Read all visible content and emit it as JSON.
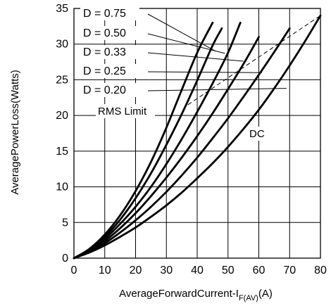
{
  "chart_data": {
    "type": "line",
    "title": "",
    "xlabel": "AverageForwardCurrent-I",
    "xlabel_subscript": "F(AV)",
    "xlabel_unit": "(A)",
    "ylabel": "AveragePowerLoss(Watts)",
    "xlim": [
      0,
      80
    ],
    "ylim": [
      0,
      35
    ],
    "x_ticks": [
      0,
      10,
      20,
      30,
      40,
      50,
      60,
      70,
      80
    ],
    "y_ticks": [
      0,
      5,
      10,
      15,
      20,
      25,
      30,
      35
    ],
    "grid": true,
    "series": [
      {
        "name": "D = 0.75",
        "x": [
          0,
          5,
          10,
          15,
          20,
          25,
          30,
          35,
          40,
          45
        ],
        "y": [
          0,
          1.3,
          3.3,
          6.0,
          9.4,
          13.5,
          18.3,
          23.6,
          28.8,
          33.0
        ]
      },
      {
        "name": "D = 0.50",
        "x": [
          0,
          5,
          10,
          15,
          20,
          25,
          30,
          35,
          40,
          45,
          48
        ],
        "y": [
          0,
          1.2,
          3.0,
          5.4,
          8.4,
          11.9,
          15.9,
          20.2,
          24.9,
          29.8,
          32.2
        ]
      },
      {
        "name": "D = 0.33",
        "x": [
          0,
          5,
          10,
          15,
          20,
          25,
          30,
          35,
          40,
          45,
          50,
          54
        ],
        "y": [
          0,
          1.1,
          2.7,
          4.8,
          7.2,
          10.0,
          13.2,
          16.7,
          20.5,
          24.5,
          28.8,
          33.0
        ]
      },
      {
        "name": "D = 0.25",
        "x": [
          0,
          5,
          10,
          15,
          20,
          25,
          30,
          35,
          40,
          45,
          50,
          55,
          60
        ],
        "y": [
          0,
          1.0,
          2.4,
          4.2,
          6.3,
          8.7,
          11.3,
          14.1,
          17.1,
          20.3,
          23.7,
          27.2,
          31.0
        ]
      },
      {
        "name": "D = 0.20",
        "x": [
          0,
          5,
          10,
          15,
          20,
          25,
          30,
          35,
          40,
          45,
          50,
          55,
          60,
          65,
          70
        ],
        "y": [
          0,
          0.9,
          2.1,
          3.6,
          5.3,
          7.2,
          9.3,
          11.6,
          14.1,
          16.8,
          19.6,
          22.6,
          25.7,
          28.9,
          32.2
        ]
      },
      {
        "name": "DC",
        "x": [
          0,
          5,
          10,
          15,
          20,
          25,
          30,
          35,
          40,
          45,
          50,
          55,
          60,
          65,
          70,
          75,
          80
        ],
        "y": [
          0,
          0.8,
          1.8,
          3.0,
          4.3,
          5.8,
          7.4,
          9.2,
          11.2,
          13.3,
          15.6,
          18.1,
          20.8,
          23.8,
          27.0,
          30.4,
          34.0
        ]
      }
    ],
    "rms_limit": {
      "name": "RMS Limit",
      "x": [
        37,
        80
      ],
      "y": [
        21.5,
        34
      ]
    },
    "annotations": {
      "duty_labels": [
        "D = 0.75",
        "D = 0.50",
        "D = 0.33",
        "D = 0.25",
        "D = 0.20"
      ],
      "rms_label": "RMS Limit",
      "dc_label": "DC"
    }
  }
}
